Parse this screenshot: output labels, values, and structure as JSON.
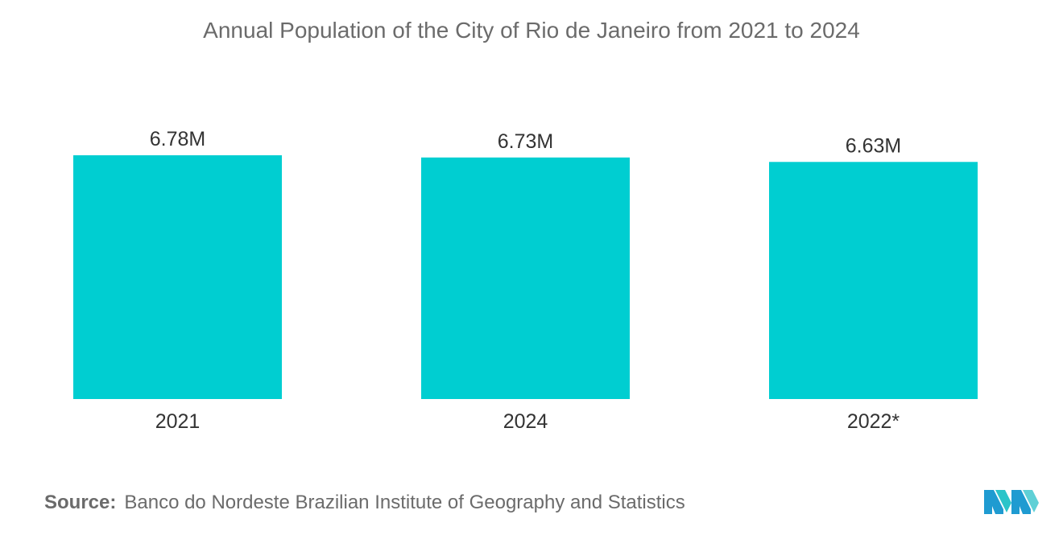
{
  "chart_data": {
    "type": "bar",
    "title": "Annual Population of the City of Rio de Janeiro from 2021 to 2024",
    "categories": [
      "2021",
      "2024",
      "2022*"
    ],
    "values": [
      6.78,
      6.73,
      6.63
    ],
    "value_labels": [
      "6.78M",
      "6.73M",
      "6.63M"
    ],
    "unit": "M",
    "ylim": [
      0,
      6.78
    ],
    "grid": false,
    "legend": "none",
    "bar_color": "#00CED1"
  },
  "source": {
    "label": "Source:",
    "text": "Banco do Nordeste Brazilian Institute of Geography and Statistics"
  },
  "brand": {
    "logo_icon": "mordor-intelligence-logo-icon",
    "colors": [
      "#1f9bd1",
      "#2bc4c9",
      "#5fd0d6"
    ]
  }
}
